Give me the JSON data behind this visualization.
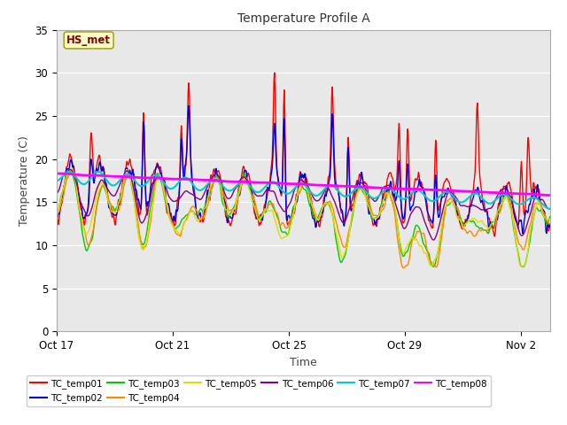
{
  "title": "Temperature Profile A",
  "xlabel": "Time",
  "ylabel": "Temperature (C)",
  "ylim": [
    0,
    35
  ],
  "yticks": [
    0,
    5,
    10,
    15,
    20,
    25,
    30,
    35
  ],
  "background_color": "#e8e8e8",
  "fig_background": "#ffffff",
  "annotation_text": "HS_met",
  "annotation_bg": "#ffffcc",
  "annotation_border": "#999900",
  "annotation_text_color": "#880000",
  "series_order": [
    "TC_temp01",
    "TC_temp02",
    "TC_temp03",
    "TC_temp04",
    "TC_temp05",
    "TC_temp06",
    "TC_temp07",
    "TC_temp08"
  ],
  "series": {
    "TC_temp01": {
      "color": "#ff0000",
      "lw": 1.0
    },
    "TC_temp02": {
      "color": "#0000dd",
      "lw": 1.0
    },
    "TC_temp03": {
      "color": "#00cc00",
      "lw": 1.0
    },
    "TC_temp04": {
      "color": "#ff8800",
      "lw": 1.0
    },
    "TC_temp05": {
      "color": "#dddd00",
      "lw": 1.0
    },
    "TC_temp06": {
      "color": "#880088",
      "lw": 1.0
    },
    "TC_temp07": {
      "color": "#00cccc",
      "lw": 1.5
    },
    "TC_temp08": {
      "color": "#ff00ff",
      "lw": 2.0
    }
  },
  "x_tick_labels": [
    "Oct 17",
    "Oct 21",
    "Oct 25",
    "Oct 29",
    "Nov 2"
  ],
  "x_tick_positions": [
    0,
    4,
    8,
    12,
    16
  ],
  "legend_ncol": 6,
  "title_fontsize": 10,
  "axis_fontsize": 9,
  "tick_fontsize": 8.5
}
